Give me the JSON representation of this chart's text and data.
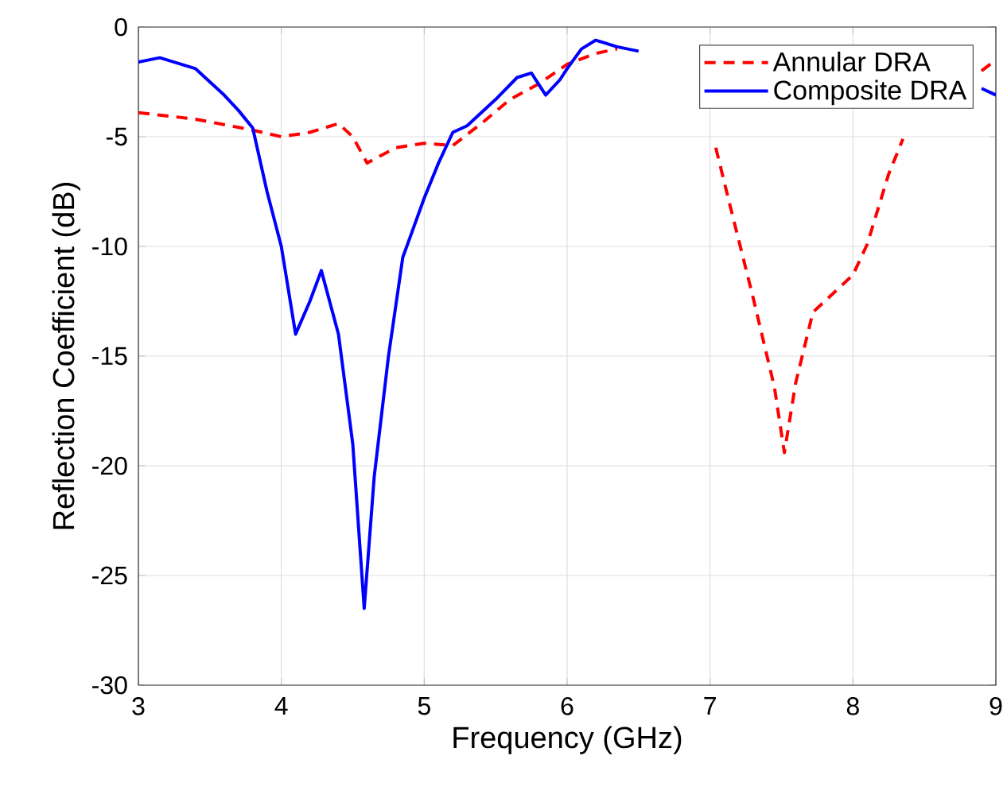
{
  "chart_data": {
    "type": "line",
    "xlabel": "Frequency (GHz)",
    "ylabel": "Reflection Coefficient (dB)",
    "xlim": [
      3,
      9
    ],
    "ylim": [
      -30,
      0
    ],
    "xticks": [
      3,
      4,
      5,
      6,
      7,
      8,
      9
    ],
    "yticks": [
      -30,
      -25,
      -20,
      -15,
      -10,
      -5,
      0
    ],
    "grid": true,
    "legend": "top right",
    "series": [
      {
        "name": "Annular DRA",
        "color": "#ff0000",
        "line_style": "dashed",
        "x": [
          3.0,
          3.4,
          3.8,
          4.0,
          4.2,
          4.4,
          4.5,
          4.6,
          4.8,
          5.0,
          5.2,
          5.4,
          5.6,
          5.8,
          6.0,
          6.2,
          6.35,
          6.7,
          7.04,
          7.15,
          7.3,
          7.45,
          7.52,
          7.6,
          7.72,
          8.0,
          8.1,
          8.25,
          8.35,
          8.5,
          8.9,
          9.0
        ],
        "values": [
          -3.9,
          -4.2,
          -4.7,
          -5.0,
          -4.8,
          -4.4,
          -5.0,
          -6.2,
          -5.5,
          -5.3,
          -5.4,
          -4.4,
          -3.3,
          -2.6,
          -1.7,
          -1.2,
          -1.0,
          null,
          -5.5,
          -8.4,
          -12.3,
          -16.4,
          -19.4,
          -16.2,
          -13.0,
          -11.3,
          -9.9,
          -6.7,
          -5.1,
          null,
          -2.0,
          -1.5
        ]
      },
      {
        "name": "Composite DRA",
        "color": "#0000ff",
        "line_style": "solid",
        "x": [
          3.0,
          3.15,
          3.4,
          3.6,
          3.7,
          3.8,
          3.9,
          4.0,
          4.1,
          4.2,
          4.28,
          4.4,
          4.5,
          4.58,
          4.65,
          4.75,
          4.85,
          5.0,
          5.1,
          5.2,
          5.3,
          5.5,
          5.65,
          5.75,
          5.85,
          5.95,
          6.0,
          6.1,
          6.2,
          6.35,
          6.5,
          7.5,
          8.9,
          9.0
        ],
        "values": [
          -1.6,
          -1.4,
          -1.9,
          -3.1,
          -3.8,
          -4.6,
          -7.5,
          -10.0,
          -14.0,
          -12.5,
          -11.1,
          -14.0,
          -19.0,
          -26.5,
          -20.5,
          -15.0,
          -10.5,
          -7.8,
          -6.2,
          -4.8,
          -4.5,
          -3.3,
          -2.3,
          -2.1,
          -3.1,
          -2.4,
          -1.9,
          -1.0,
          -0.6,
          -0.9,
          -1.1,
          null,
          -2.8,
          -3.1
        ]
      }
    ]
  }
}
